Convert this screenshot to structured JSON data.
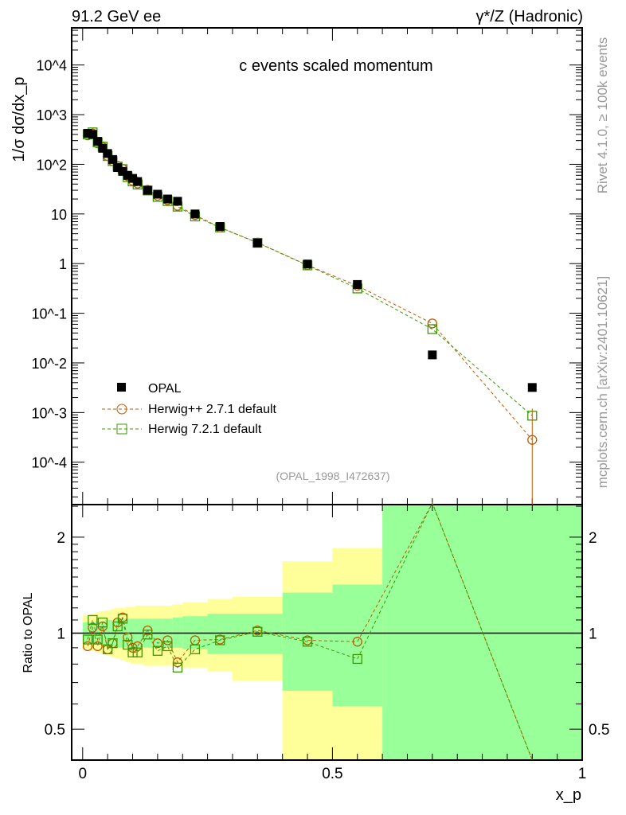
{
  "header": {
    "left": "91.2 GeV ee",
    "right": "γ*/Z (Hadronic)"
  },
  "side": {
    "rivet": "Rivet 4.1.0, ≥ 100k events",
    "mcplots": "mcplots.cern.ch [arXiv:2401.10621]"
  },
  "colors": {
    "data": "#000000",
    "herwigpp": "#c05a00",
    "herwig7": "#3a9a00",
    "band_outer": "#ffff99",
    "band_inner": "#99ff99"
  },
  "chart_data": [
    {
      "type": "scatter",
      "title": "c events scaled momentum",
      "ylabel": "1/σ dσ/dx_p",
      "xlabel": "x_p",
      "yscale": "log",
      "xlim": [
        -0.022,
        1.0
      ],
      "ylim": [
        1.4e-05,
        56000
      ],
      "yticks": [
        {
          "v": 10000,
          "l": "10^4"
        },
        {
          "v": 1000,
          "l": "10^3"
        },
        {
          "v": 100,
          "l": "10^2"
        },
        {
          "v": 10,
          "l": "10"
        },
        {
          "v": 1,
          "l": "1"
        },
        {
          "v": 0.1,
          "l": "10^-1"
        },
        {
          "v": 0.01,
          "l": "10^-2"
        },
        {
          "v": 0.001,
          "l": "10^-3"
        },
        {
          "v": 0.0001,
          "l": "10^-4"
        }
      ],
      "annotation": "(OPAL_1998_I472637)",
      "legend_position": "bottom-left",
      "x": [
        0.01,
        0.02,
        0.03,
        0.04,
        0.05,
        0.06,
        0.07,
        0.08,
        0.09,
        0.1,
        0.11,
        0.13,
        0.15,
        0.17,
        0.19,
        0.225,
        0.275,
        0.35,
        0.45,
        0.55,
        0.7,
        0.9
      ],
      "series": [
        {
          "name": "OPAL",
          "values": [
            420,
            400,
            290,
            210,
            165,
            125,
            86,
            72,
            60,
            52,
            45,
            30,
            25,
            20,
            18,
            10,
            5.6,
            2.6,
            0.98,
            0.38,
            0.0145,
            0.0032
          ]
        },
        {
          "name": "Herwig++ 2.7.1 default",
          "ratio": [
            0.91,
            1.04,
            0.91,
            1.05,
            0.89,
            0.93,
            1.08,
            1.12,
            0.97,
            0.9,
            0.91,
            1.02,
            0.93,
            0.95,
            0.81,
            0.95,
            0.955,
            1.02,
            0.95,
            0.94,
            4.3,
            0.088
          ]
        },
        {
          "name": "Herwig 7.2.1 default",
          "ratio": [
            0.955,
            1.1,
            0.955,
            1.08,
            0.89,
            0.93,
            1.05,
            1.11,
            0.92,
            0.87,
            0.87,
            0.99,
            0.88,
            0.91,
            0.78,
            0.89,
            0.95,
            1.01,
            0.94,
            0.83,
            3.3,
            0.27
          ]
        }
      ]
    },
    {
      "type": "line",
      "ylabel": "Ratio to OPAL",
      "yscale": "log",
      "ylim": [
        0.4,
        2.53
      ],
      "reference": 1,
      "yticks": [
        {
          "v": 2,
          "l": "2"
        },
        {
          "v": 1,
          "l": "1"
        },
        {
          "v": 0.5,
          "l": "0.5"
        }
      ],
      "xticks": [
        {
          "v": 0,
          "l": "0"
        },
        {
          "v": 0.5,
          "l": "0.5"
        },
        {
          "v": 1,
          "l": "1"
        }
      ],
      "bin_edges": [
        0,
        0.015,
        0.025,
        0.035,
        0.045,
        0.055,
        0.065,
        0.075,
        0.085,
        0.095,
        0.105,
        0.12,
        0.14,
        0.16,
        0.18,
        0.2,
        0.25,
        0.3,
        0.4,
        0.5,
        0.6,
        0.8,
        1.0
      ],
      "band_outer": [
        [
          0.89,
          1.14
        ],
        [
          0.88,
          1.15
        ],
        [
          0.87,
          1.16
        ],
        [
          0.86,
          1.17
        ],
        [
          0.85,
          1.18
        ],
        [
          0.84,
          1.19
        ],
        [
          0.83,
          1.2
        ],
        [
          0.82,
          1.2
        ],
        [
          0.81,
          1.21
        ],
        [
          0.8,
          1.21
        ],
        [
          0.8,
          1.22
        ],
        [
          0.79,
          1.22
        ],
        [
          0.79,
          1.22
        ],
        [
          0.79,
          1.22
        ],
        [
          0.79,
          1.23
        ],
        [
          0.78,
          1.25
        ],
        [
          0.76,
          1.28
        ],
        [
          0.71,
          1.3
        ],
        [
          0.3,
          1.68
        ],
        [
          0.3,
          1.85
        ],
        [
          0.3,
          3
        ],
        [
          0.3,
          3
        ]
      ],
      "band_inner": [
        [
          0.93,
          1.08
        ],
        [
          0.93,
          1.08
        ],
        [
          0.92,
          1.09
        ],
        [
          0.92,
          1.09
        ],
        [
          0.91,
          1.1
        ],
        [
          0.91,
          1.1
        ],
        [
          0.9,
          1.11
        ],
        [
          0.9,
          1.11
        ],
        [
          0.9,
          1.11
        ],
        [
          0.9,
          1.11
        ],
        [
          0.9,
          1.11
        ],
        [
          0.9,
          1.11
        ],
        [
          0.9,
          1.11
        ],
        [
          0.9,
          1.11
        ],
        [
          0.9,
          1.12
        ],
        [
          0.89,
          1.13
        ],
        [
          0.86,
          1.15
        ],
        [
          0.86,
          1.15
        ],
        [
          0.66,
          1.34
        ],
        [
          0.59,
          1.42
        ],
        [
          0.3,
          3
        ],
        [
          0.3,
          3
        ]
      ]
    }
  ]
}
